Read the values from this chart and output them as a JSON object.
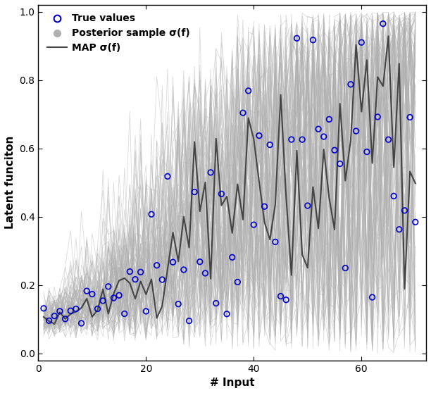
{
  "n_points": 70,
  "xlim": [
    0,
    72
  ],
  "ylim": [
    -0.02,
    1.02
  ],
  "yticks": [
    0.0,
    0.2,
    0.4,
    0.6,
    0.8,
    1.0
  ],
  "xticks": [
    0,
    20,
    40,
    60
  ],
  "xlabel": "# Input",
  "ylabel": "Latent funciton",
  "legend_labels": [
    "True values",
    "Posterior sample σ(f)",
    "MAP σ(f)"
  ],
  "true_color": "#0000cc",
  "sample_color": "#b0b0b0",
  "map_color": "#444444",
  "background_color": "#ffffff",
  "n_samples": 80,
  "seed": 7,
  "label_fontsize": 11,
  "legend_fontsize": 10
}
